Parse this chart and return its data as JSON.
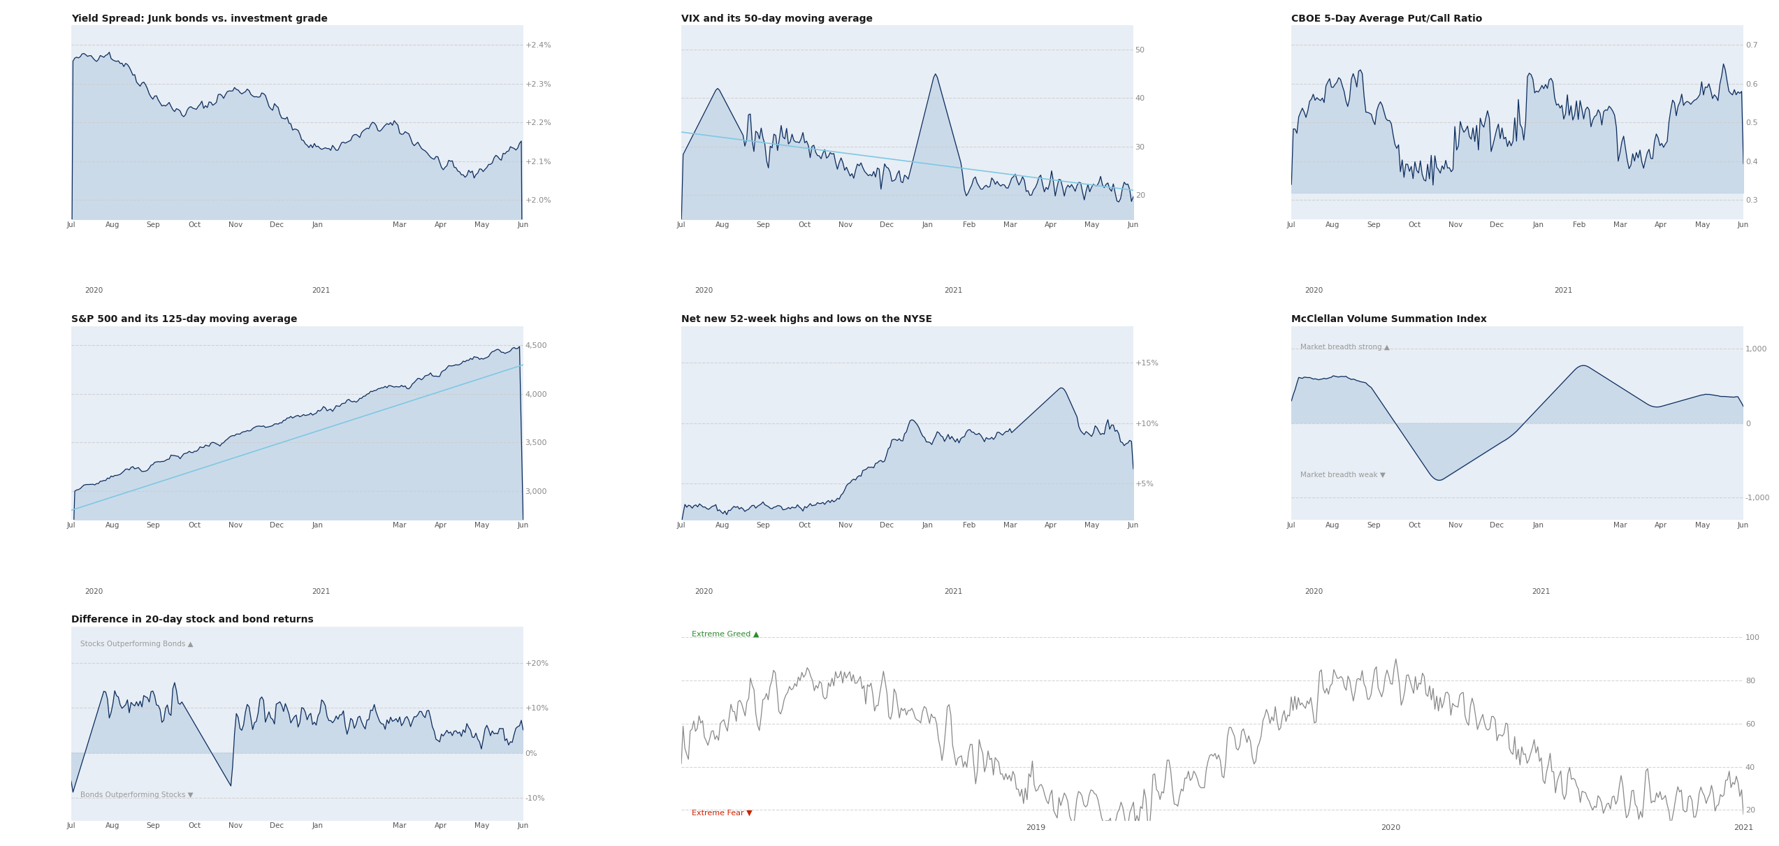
{
  "bg_color": "#ffffff",
  "chart_bg": "#e8eef5",
  "line_dark": "#0d2d5e",
  "line_light": "#7ec8e3",
  "line_gray": "#888888",
  "fill_color": "#c8d8e8",
  "grid_color": "#cccccc",
  "text_color": "#333333",
  "axis_label_color": "#888888",
  "titles": {
    "t1": "Yield Spread: Junk bonds vs. investment grade",
    "t2": "VIX and its 50-day moving average",
    "t3": "CBOE 5-Day Average Put/Call Ratio",
    "t4": "S&P 500 and its 125-day moving average",
    "t5": "Net new 52-week highs and lows on the NYSE",
    "t6": "McClellan Volume Summation Index",
    "t7": "Difference in 20-day stock and bond returns"
  },
  "xtick_labels_1": [
    "Jul",
    "Aug",
    "Sep",
    "Oct",
    "Nov",
    "Dec",
    "Jan",
    "",
    "Mar",
    "Apr",
    "May",
    "Jun"
  ],
  "xtick_years_1": [
    "2020",
    "2021"
  ],
  "xtick_labels_big": [
    "Jul",
    "Aug",
    "Sep",
    "Oct",
    "Nov",
    "Dec",
    "Jan",
    "Feb",
    "Mar",
    "Apr",
    "May",
    "Jun"
  ],
  "xtick_years_big": [
    "2020",
    "2021"
  ],
  "plot1": {
    "yticks": [
      2.0,
      2.1,
      2.2,
      2.3,
      2.4
    ],
    "ylabels": [
      "+2.0%",
      "+2.1%",
      "+2.2%",
      "+2.3%",
      "+2.4%"
    ],
    "ylim": [
      1.95,
      2.45
    ]
  },
  "plot2": {
    "yticks": [
      20,
      30,
      40,
      50
    ],
    "ylabels": [
      "20",
      "30",
      "40",
      "50"
    ],
    "ylim": [
      15,
      55
    ]
  },
  "plot3": {
    "yticks": [
      0.3,
      0.4,
      0.5,
      0.6,
      0.7
    ],
    "ylabels": [
      "0.3",
      "0.4",
      "0.5",
      "0.6",
      "0.7"
    ],
    "ylim": [
      0.25,
      0.75
    ]
  },
  "plot4": {
    "yticks": [
      3000,
      3500,
      4000,
      4500
    ],
    "ylabels": [
      "3,000",
      "3,500",
      "4,000",
      "4,500"
    ],
    "ylim": [
      2700,
      4700
    ]
  },
  "plot5": {
    "yticks": [
      0.05,
      0.1,
      0.15
    ],
    "ylabels": [
      "+5%",
      "+10%",
      "+15%"
    ],
    "ylim": [
      0.02,
      0.18
    ]
  },
  "plot6": {
    "yticks": [
      -1000,
      0,
      1000
    ],
    "ylabels": [
      "-1,000",
      "0",
      "1,000"
    ],
    "ylim": [
      -1300,
      1300
    ]
  },
  "plot7": {
    "yticks": [
      -0.1,
      0.0,
      0.1,
      0.2
    ],
    "ylabels": [
      "-10%",
      "0%",
      "+10%",
      "+20%"
    ],
    "ylim": [
      -0.15,
      0.28
    ]
  },
  "plot8": {
    "yticks": [
      20,
      40,
      60,
      80,
      100
    ],
    "ylabels": [
      "20",
      "40",
      "60",
      "80",
      "100"
    ],
    "ylim": [
      15,
      105
    ],
    "xtick_labels": [
      "2019",
      "2020",
      "2021"
    ],
    "extreme_greed_label": "Extreme Greed ▲",
    "extreme_fear_label": "Extreme Fear ▼"
  }
}
